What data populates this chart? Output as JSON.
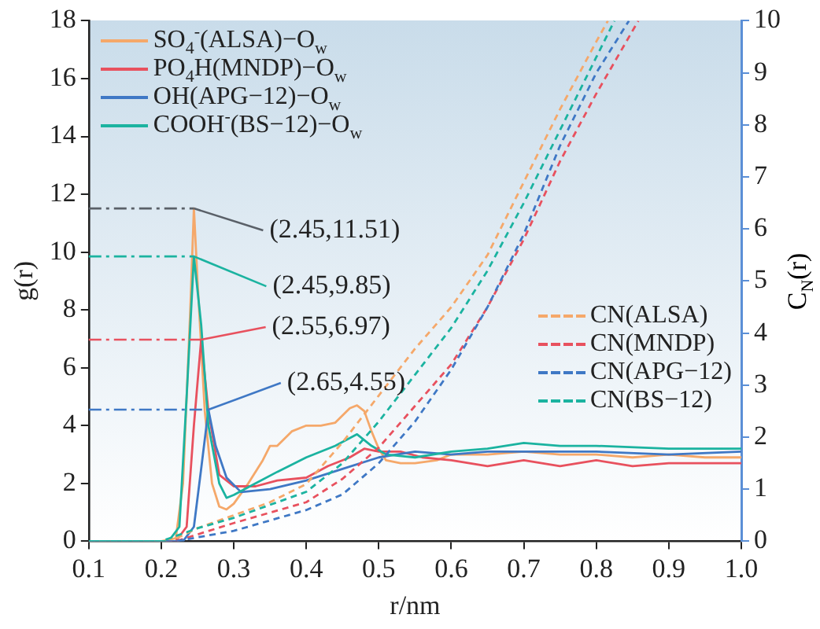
{
  "chart_data": {
    "type": "line",
    "xlabel": "r/nm",
    "ylabel": "g(r)",
    "y2label": "C$_{N}$(r)",
    "xlim": [
      0.1,
      1.0
    ],
    "xticks": [
      0.1,
      0.2,
      0.3,
      0.4,
      0.5,
      0.6,
      0.7,
      0.8,
      0.9,
      {
        "value": 1.0,
        "label": "1.0"
      }
    ],
    "ylim": [
      0,
      18
    ],
    "yticks": [
      0,
      2,
      4,
      6,
      8,
      10,
      12,
      14,
      16,
      18
    ],
    "y2lim": [
      0,
      10
    ],
    "y2ticks": [
      0,
      1,
      2,
      3,
      4,
      5,
      6,
      7,
      8,
      9,
      10
    ],
    "grid": false,
    "legend": "top left",
    "marker": "none",
    "series": [
      {
        "name": "SO$_{4}$$^{-}$(ALSA)−O$_{w}$",
        "color": "#f5a86a",
        "x": [
          0.1,
          0.2,
          0.22,
          0.23,
          0.24,
          0.245,
          0.25,
          0.26,
          0.27,
          0.28,
          0.29,
          0.3,
          0.32,
          0.34,
          0.35,
          0.36,
          0.38,
          0.4,
          0.42,
          0.44,
          0.46,
          0.47,
          0.48,
          0.49,
          0.5,
          0.51,
          0.53,
          0.55,
          0.58,
          0.6,
          0.65,
          0.7,
          0.75,
          0.8,
          0.85,
          0.9,
          0.95,
          1.0
        ],
        "values": [
          0,
          0,
          0.1,
          2,
          8,
          11.51,
          9,
          4.5,
          2,
          1.2,
          1.1,
          1.3,
          2.0,
          2.8,
          3.3,
          3.3,
          3.8,
          4.0,
          4.0,
          4.1,
          4.6,
          4.7,
          4.5,
          3.8,
          3.2,
          2.8,
          2.7,
          2.7,
          2.8,
          3.0,
          3.0,
          3.1,
          3.0,
          3.0,
          2.9,
          3.0,
          2.9,
          2.9
        ]
      },
      {
        "name": "PO$_{4}$H(MNDP)−O$_{w}$",
        "color": "#e8515e",
        "x": [
          0.1,
          0.22,
          0.235,
          0.245,
          0.255,
          0.265,
          0.28,
          0.3,
          0.33,
          0.36,
          0.4,
          0.43,
          0.46,
          0.48,
          0.5,
          0.53,
          0.56,
          0.6,
          0.65,
          0.7,
          0.75,
          0.8,
          0.85,
          0.9,
          0.95,
          1.0
        ],
        "values": [
          0,
          0,
          0.5,
          4,
          6.97,
          4.5,
          2.3,
          1.9,
          1.9,
          2.1,
          2.2,
          2.6,
          2.9,
          3.2,
          3.1,
          3.1,
          2.9,
          2.8,
          2.6,
          2.8,
          2.6,
          2.8,
          2.6,
          2.7,
          2.7,
          2.7
        ]
      },
      {
        "name": "OH(APG−12)−O$_{w}$",
        "color": "#3f78c5",
        "x": [
          0.1,
          0.23,
          0.245,
          0.255,
          0.265,
          0.275,
          0.29,
          0.31,
          0.35,
          0.4,
          0.45,
          0.5,
          0.55,
          0.6,
          0.65,
          0.7,
          0.8,
          0.9,
          1.0
        ],
        "values": [
          0,
          0,
          0.5,
          2.5,
          4.55,
          3.3,
          2.2,
          1.7,
          1.8,
          2.1,
          2.5,
          2.9,
          3.1,
          3.0,
          3.1,
          3.1,
          3.1,
          3.0,
          3.1
        ]
      },
      {
        "name": "COOH$^{-}$(BS−12)−O$_{w}$",
        "color": "#1bb3a0",
        "x": [
          0.1,
          0.21,
          0.225,
          0.235,
          0.245,
          0.255,
          0.265,
          0.28,
          0.29,
          0.3,
          0.33,
          0.36,
          0.4,
          0.44,
          0.47,
          0.49,
          0.51,
          0.55,
          0.6,
          0.65,
          0.7,
          0.75,
          0.8,
          0.9,
          1.0
        ],
        "values": [
          0,
          0,
          0.5,
          5,
          9.85,
          7.5,
          4,
          2,
          1.5,
          1.6,
          2.0,
          2.4,
          2.9,
          3.3,
          3.7,
          3.3,
          3.0,
          2.9,
          3.1,
          3.2,
          3.4,
          3.3,
          3.3,
          3.2,
          3.2
        ]
      },
      {
        "name": "CN(ALSA)",
        "color": "#f5a86a",
        "axis": "y2",
        "line_style": "dashed",
        "x": [
          0.1,
          0.2,
          0.22,
          0.25,
          0.3,
          0.35,
          0.4,
          0.45,
          0.5,
          0.55,
          0.6,
          0.65,
          0.7,
          0.75,
          0.8,
          0.816
        ],
        "values": [
          0,
          0,
          0.05,
          0.25,
          0.5,
          0.75,
          1.1,
          1.9,
          2.8,
          3.7,
          4.5,
          5.5,
          6.9,
          8.3,
          9.6,
          10
        ]
      },
      {
        "name": "CN(MNDP)",
        "color": "#e8515e",
        "axis": "y2",
        "line_style": "dashed",
        "x": [
          0.1,
          0.22,
          0.3,
          0.4,
          0.45,
          0.5,
          0.55,
          0.6,
          0.65,
          0.7,
          0.75,
          0.8,
          0.858
        ],
        "values": [
          0,
          0,
          0.35,
          0.75,
          1.2,
          1.8,
          2.6,
          3.4,
          4.5,
          5.8,
          7.3,
          8.6,
          10
        ]
      },
      {
        "name": "CN(APG−12)",
        "color": "#3f78c5",
        "axis": "y2",
        "line_style": "dashed",
        "x": [
          0.1,
          0.22,
          0.3,
          0.4,
          0.45,
          0.5,
          0.55,
          0.6,
          0.65,
          0.7,
          0.75,
          0.8,
          0.845
        ],
        "values": [
          0,
          0,
          0.2,
          0.6,
          0.9,
          1.5,
          2.3,
          3.3,
          4.5,
          5.9,
          7.6,
          9.0,
          10
        ]
      },
      {
        "name": "CN(BS−12)",
        "color": "#1bb3a0",
        "axis": "y2",
        "line_style": "dashed",
        "x": [
          0.1,
          0.2,
          0.25,
          0.3,
          0.4,
          0.45,
          0.5,
          0.55,
          0.6,
          0.65,
          0.7,
          0.75,
          0.8,
          0.825
        ],
        "values": [
          0,
          0,
          0.25,
          0.45,
          0.95,
          1.5,
          2.3,
          3.2,
          4.1,
          5.2,
          6.5,
          7.9,
          9.3,
          10
        ]
      }
    ],
    "ref_lines": [
      {
        "axis": "y",
        "value": 11.51,
        "color": "#5a6068",
        "line_style": "dashed"
      },
      {
        "axis": "y",
        "value": 9.85,
        "color": "#1bb3a0",
        "line_style": "dashed"
      },
      {
        "axis": "y",
        "value": 6.97,
        "color": "#e8515e",
        "line_style": "dashed"
      },
      {
        "axis": "y",
        "value": 4.55,
        "color": "#3f78c5",
        "line_style": "dashed"
      }
    ],
    "annotations": [
      {
        "text": "(2.45,11.51)",
        "x": 0.245,
        "y": 11.51
      },
      {
        "text": "(2.45,9.85)",
        "x": 0.245,
        "y": 9.85
      },
      {
        "text": "(2.55,6.97)",
        "x": 0.255,
        "y": 6.97
      },
      {
        "text": "(2.65,4.55)",
        "x": 0.265,
        "y": 4.55
      }
    ]
  }
}
